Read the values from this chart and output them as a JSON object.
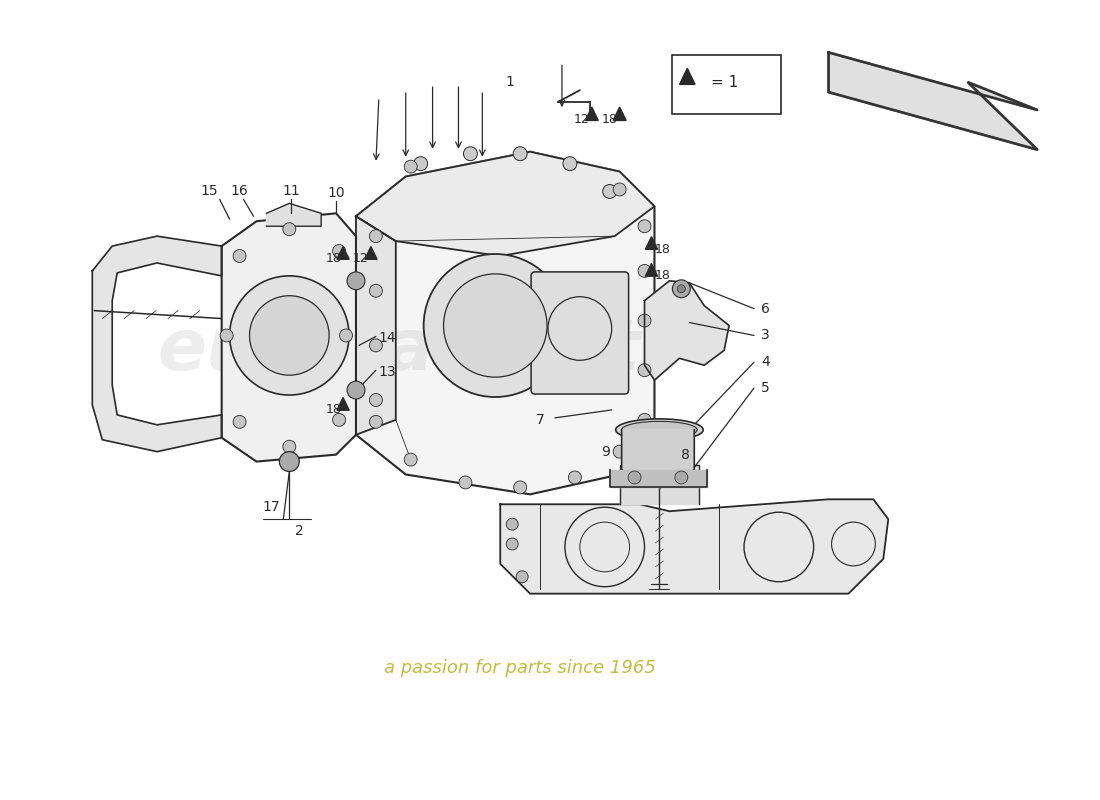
{
  "bg_color": "#ffffff",
  "line_color": "#2a2a2a",
  "dim_color": "#666666",
  "fill_light": "#f5f5f5",
  "fill_mid": "#e8e8e8",
  "fill_dark": "#d0d0d0",
  "watermark_color": "#c8c8c8",
  "watermark_yellow": "#b8b020",
  "legend_text": "▲ = 1"
}
